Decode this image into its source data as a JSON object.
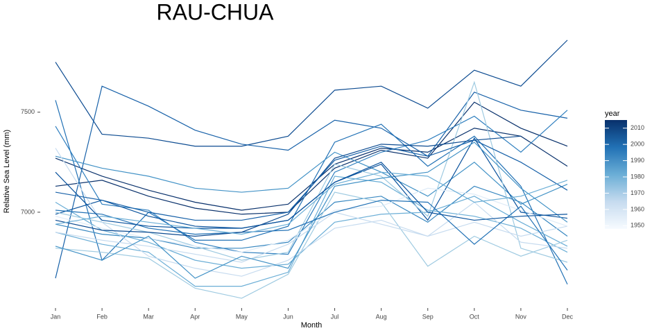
{
  "chart_data": {
    "type": "line",
    "title": "RAU-CHUA",
    "xlabel": "Month",
    "ylabel": "Relative Sea Level (mm)",
    "categories": [
      "Jan",
      "Feb",
      "Mar",
      "Apr",
      "May",
      "Jun",
      "Jul",
      "Aug",
      "Sep",
      "Oct",
      "Nov",
      "Dec"
    ],
    "ylim": [
      6535,
      7870
    ],
    "yticks": [
      7000,
      7500
    ],
    "grid": false,
    "legend": {
      "title": "year",
      "lim": [
        1948,
        2015
      ],
      "ticks": [
        1950,
        1960,
        1970,
        1980,
        1990,
        2000,
        2010
      ],
      "colors": [
        "#f7fbff",
        "#c6dbef",
        "#6baed6",
        "#2171b5",
        "#08306b"
      ]
    },
    "series": [
      {
        "color": "#08306b",
        "values": [
          7270,
          7180,
          7110,
          7050,
          7010,
          7040,
          7240,
          7320,
          7300,
          7420,
          7380,
          7230
        ]
      },
      {
        "color": "#08306b",
        "values": [
          7130,
          7160,
          7080,
          7020,
          6990,
          7000,
          7220,
          7310,
          7270,
          7550,
          7420,
          7330
        ]
      },
      {
        "color": "#0b4a90",
        "values": [
          7750,
          7390,
          7370,
          7330,
          7330,
          7380,
          7610,
          7630,
          7520,
          7710,
          7630,
          7860
        ]
      },
      {
        "color": "#1660a8",
        "values": [
          6670,
          7630,
          7530,
          7410,
          7340,
          7310,
          7460,
          7420,
          7280,
          7600,
          7510,
          7470
        ]
      },
      {
        "color": "#2171b5",
        "values": [
          7560,
          6760,
          7000,
          6860,
          6860,
          6930,
          7350,
          7440,
          7230,
          7380,
          7130,
          6640
        ]
      },
      {
        "color": "#2f7fbf",
        "values": [
          7430,
          7040,
          7010,
          6850,
          6800,
          6790,
          7200,
          7300,
          7360,
          7480,
          7300,
          7510
        ]
      },
      {
        "color": "#4292c6",
        "values": [
          7280,
          7220,
          7180,
          7120,
          7100,
          7120,
          7300,
          7200,
          7080,
          7250,
          7040,
          7140
        ]
      },
      {
        "color": "#08519c",
        "values": [
          6990,
          7060,
          6980,
          6930,
          6920,
          6960,
          7150,
          7240,
          6960,
          7370,
          7000,
          6970
        ]
      },
      {
        "color": "#3787c0",
        "values": [
          6940,
          6890,
          6870,
          6820,
          6820,
          6850,
          7050,
          7080,
          6950,
          7130,
          7050,
          6880
        ]
      },
      {
        "color": "#6baed6",
        "values": [
          7050,
          6910,
          6850,
          6760,
          6720,
          6740,
          6950,
          6990,
          7000,
          7080,
          6950,
          6830
        ]
      },
      {
        "color": "#6baed6",
        "values": [
          6900,
          6840,
          6800,
          6630,
          6630,
          6700,
          7180,
          7150,
          7010,
          6980,
          6920,
          6800
        ]
      },
      {
        "color": "#9ecae1",
        "values": [
          6820,
          6800,
          6770,
          6620,
          6570,
          6690,
          7100,
          7050,
          6730,
          6880,
          6780,
          6860
        ]
      },
      {
        "color": "#9ecae1",
        "values": [
          7000,
          6950,
          6900,
          6830,
          6760,
          6800,
          7240,
          7180,
          6980,
          7650,
          6820,
          6750
        ]
      },
      {
        "color": "#c6dbef",
        "values": [
          6900,
          6860,
          6830,
          6790,
          6750,
          6840,
          7000,
          6940,
          6880,
          7050,
          6850,
          6820
        ]
      },
      {
        "color": "#c6dbef",
        "values": [
          7320,
          6950,
          6780,
          6720,
          6680,
          6760,
          6920,
          6960,
          6880,
          6950,
          6880,
          6930
        ]
      },
      {
        "color": "#deebf7",
        "values": [
          6980,
          6920,
          6870,
          6830,
          6800,
          6860,
          7010,
          7030,
          7120,
          7090,
          7010,
          6930
        ]
      },
      {
        "color": "#4292c6",
        "values": [
          6830,
          6760,
          6880,
          6670,
          6780,
          6720,
          7130,
          7170,
          7200,
          7350,
          7120,
          6950
        ]
      },
      {
        "color": "#2171b5",
        "values": [
          7010,
          6990,
          6920,
          6890,
          6900,
          6910,
          7000,
          7060,
          7050,
          6840,
          7030,
          6710
        ]
      },
      {
        "color": "#08519c",
        "values": [
          7200,
          6960,
          6930,
          6920,
          6920,
          6960,
          7150,
          7250,
          7000,
          6960,
          6980,
          6990
        ]
      },
      {
        "color": "#0b4a90",
        "values": [
          6960,
          6910,
          6900,
          6880,
          6900,
          6990,
          7270,
          7340,
          7330,
          7360,
          7380,
          null
        ]
      },
      {
        "color": "#1660a8",
        "values": [
          7100,
          7060,
          7000,
          6960,
          6960,
          7000,
          7260,
          7330,
          7280,
          7360,
          7250,
          7110
        ]
      },
      {
        "color": "#6baed6",
        "values": [
          6940,
          6980,
          6950,
          6920,
          6890,
          6940,
          7140,
          7200,
          7180,
          7050,
          7080,
          7160
        ]
      }
    ]
  }
}
